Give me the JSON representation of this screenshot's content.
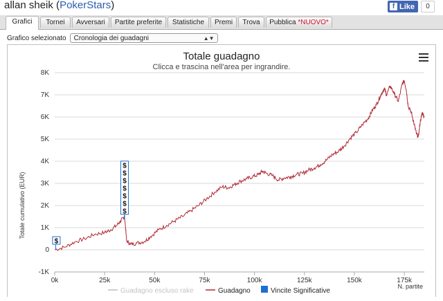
{
  "header": {
    "player_name": "allan sheik",
    "site_name": "PokerStars"
  },
  "facebook": {
    "like_label": "Like",
    "count": "0"
  },
  "tabs": [
    {
      "label": "Grafici",
      "active": true
    },
    {
      "label": "Tornei"
    },
    {
      "label": "Avversari"
    },
    {
      "label": "Partite preferite"
    },
    {
      "label": "Statistiche"
    },
    {
      "label": "Premi"
    },
    {
      "label": "Trova"
    },
    {
      "label": "Pubblica",
      "badge": "*NUOVO*"
    }
  ],
  "selector": {
    "label": "Grafico selezionato",
    "value": "Cronologia dei guadagni"
  },
  "chart_data": {
    "type": "line",
    "title": "Totale guadagno",
    "subtitle": "Clicca e trascina nell'area per ingrandire.",
    "ylabel": "Totale cumulativo (EUR)",
    "xlabel": "N. partite",
    "ylim": [
      -1000,
      8000
    ],
    "xlim": [
      0,
      185000
    ],
    "y_ticks": [
      "-1K",
      "0",
      "1K",
      "2K",
      "3K",
      "4K",
      "5K",
      "6K",
      "7K",
      "8K"
    ],
    "x_ticks": [
      "0k",
      "25k",
      "50k",
      "75k",
      "100k",
      "125k",
      "150k",
      "175k"
    ],
    "series": [
      {
        "name": "Guadagno escluso rake",
        "color": "#cccccc",
        "values": []
      },
      {
        "name": "Guadagno",
        "color": "#b02a35",
        "points": [
          [
            0,
            0
          ],
          [
            5000,
            120
          ],
          [
            10000,
            350
          ],
          [
            15000,
            500
          ],
          [
            20000,
            700
          ],
          [
            25000,
            780
          ],
          [
            28000,
            900
          ],
          [
            31000,
            1100
          ],
          [
            33000,
            1300
          ],
          [
            34500,
            1450
          ],
          [
            35000,
            1500
          ],
          [
            36000,
            400
          ],
          [
            38000,
            250
          ],
          [
            41000,
            300
          ],
          [
            45000,
            380
          ],
          [
            48000,
            600
          ],
          [
            52000,
            900
          ],
          [
            56000,
            1100
          ],
          [
            60000,
            1300
          ],
          [
            64000,
            1500
          ],
          [
            68000,
            1750
          ],
          [
            72000,
            2000
          ],
          [
            76000,
            2300
          ],
          [
            80000,
            2600
          ],
          [
            84000,
            2850
          ],
          [
            87000,
            2800
          ],
          [
            90000,
            2950
          ],
          [
            93000,
            3100
          ],
          [
            96000,
            3200
          ],
          [
            99000,
            3300
          ],
          [
            102000,
            3400
          ],
          [
            104000,
            3550
          ],
          [
            106000,
            3450
          ],
          [
            109000,
            3350
          ],
          [
            112000,
            3150
          ],
          [
            115000,
            3250
          ],
          [
            118000,
            3300
          ],
          [
            121000,
            3400
          ],
          [
            124000,
            3450
          ],
          [
            127000,
            3600
          ],
          [
            130000,
            3700
          ],
          [
            133000,
            3850
          ],
          [
            136000,
            4050
          ],
          [
            139000,
            4300
          ],
          [
            142000,
            4450
          ],
          [
            145000,
            4700
          ],
          [
            148000,
            5050
          ],
          [
            151000,
            5300
          ],
          [
            154000,
            5650
          ],
          [
            157000,
            5950
          ],
          [
            159000,
            6300
          ],
          [
            161000,
            6550
          ],
          [
            163000,
            6950
          ],
          [
            165000,
            7300
          ],
          [
            166000,
            7000
          ],
          [
            168000,
            7400
          ],
          [
            170000,
            7050
          ],
          [
            172000,
            6700
          ],
          [
            174000,
            7500
          ],
          [
            175000,
            7650
          ],
          [
            176000,
            7200
          ],
          [
            177000,
            6450
          ],
          [
            178500,
            6200
          ],
          [
            180000,
            5650
          ],
          [
            181000,
            5250
          ],
          [
            182000,
            5100
          ],
          [
            183000,
            5800
          ],
          [
            184000,
            6200
          ],
          [
            185000,
            6000
          ]
        ]
      },
      {
        "name": "Vincite Significative",
        "color": "#1f6fd1",
        "flags": [
          {
            "x": 500,
            "y": 0,
            "count": 1,
            "label": "$"
          },
          {
            "x": 35000,
            "y": 1350,
            "count": 7,
            "label": "$"
          }
        ]
      }
    ],
    "legend_position": "bottom",
    "menu_icon": "hamburger-menu-icon"
  }
}
